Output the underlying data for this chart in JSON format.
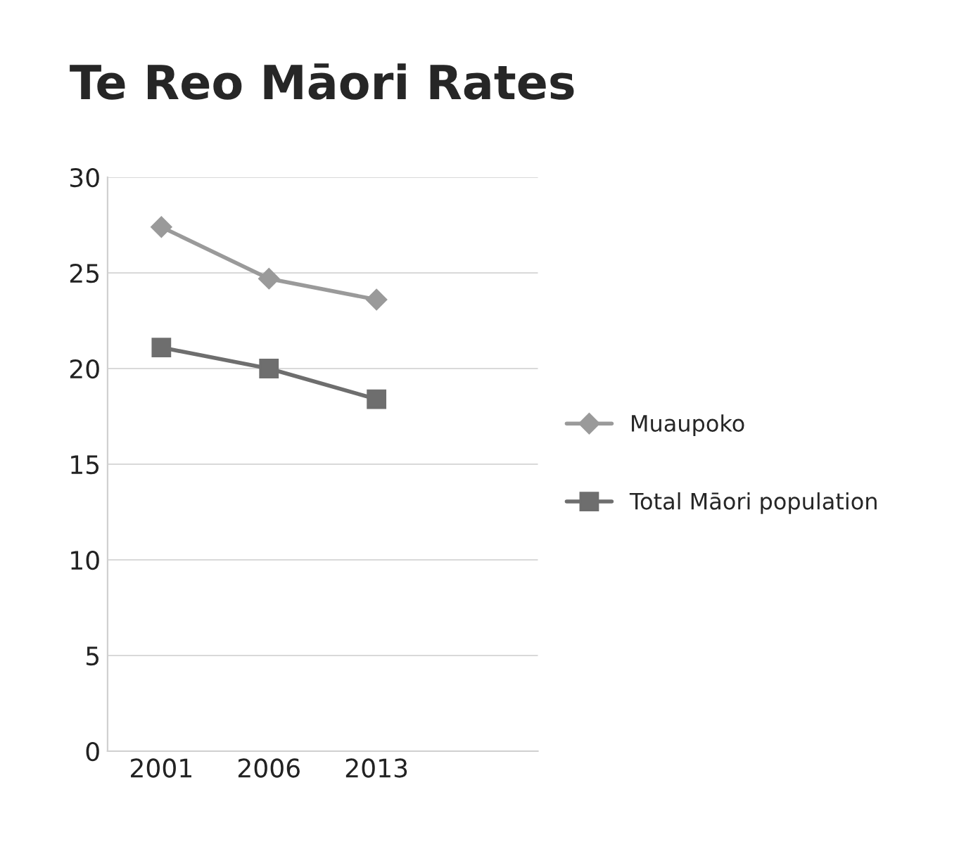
{
  "chart_data": {
    "type": "line",
    "title": "Te Reo Māori Rates",
    "categories": [
      "2001",
      "2006",
      "2013",
      null
    ],
    "series": [
      {
        "name": "Muaupoko",
        "color": "#9a9a9a",
        "marker": "diamond",
        "values": [
          27.4,
          24.7,
          23.6,
          null
        ]
      },
      {
        "name": "Total Māori population",
        "color": "#6e6e6e",
        "marker": "square",
        "values": [
          21.1,
          20.0,
          18.4,
          null
        ]
      }
    ],
    "ylim": [
      0,
      30
    ],
    "yticks": [
      0,
      5,
      10,
      15,
      20,
      25,
      30
    ],
    "grid": "y",
    "legend": "right"
  }
}
